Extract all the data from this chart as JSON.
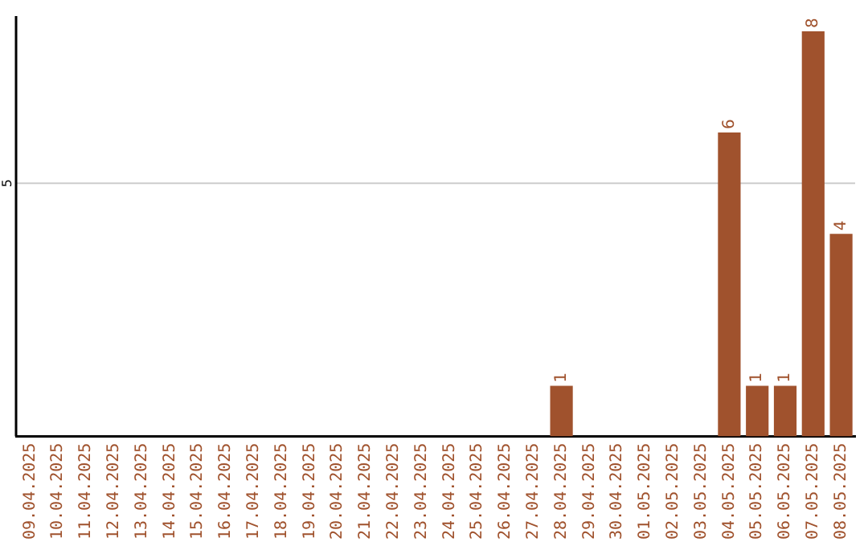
{
  "chart_data": {
    "type": "bar",
    "categories": [
      "09.04.2025",
      "10.04.2025",
      "11.04.2025",
      "12.04.2025",
      "13.04.2025",
      "14.04.2025",
      "15.04.2025",
      "16.04.2025",
      "17.04.2025",
      "18.04.2025",
      "19.04.2025",
      "20.04.2025",
      "21.04.2025",
      "22.04.2025",
      "23.04.2025",
      "24.04.2025",
      "25.04.2025",
      "26.04.2025",
      "27.04.2025",
      "28.04.2025",
      "29.04.2025",
      "30.04.2025",
      "01.05.2025",
      "02.05.2025",
      "03.05.2025",
      "04.05.2025",
      "05.05.2025",
      "06.05.2025",
      "07.05.2025",
      "08.05.2025"
    ],
    "values": [
      null,
      null,
      null,
      null,
      null,
      null,
      null,
      null,
      null,
      null,
      null,
      null,
      null,
      null,
      null,
      null,
      null,
      null,
      null,
      1,
      null,
      null,
      null,
      null,
      null,
      6,
      1,
      1,
      8,
      4
    ],
    "value_labels": [
      null,
      null,
      null,
      null,
      null,
      null,
      null,
      null,
      null,
      null,
      null,
      null,
      null,
      null,
      null,
      null,
      null,
      null,
      null,
      "1",
      null,
      null,
      null,
      null,
      null,
      "6",
      "1",
      "1",
      "8",
      "4"
    ],
    "color": "#a0522d",
    "ylim": [
      0,
      8.3
    ],
    "ref_lines": [
      {
        "axis": "y",
        "value": 5,
        "label": "5",
        "color": "#cccccc"
      }
    ],
    "legend": false
  }
}
